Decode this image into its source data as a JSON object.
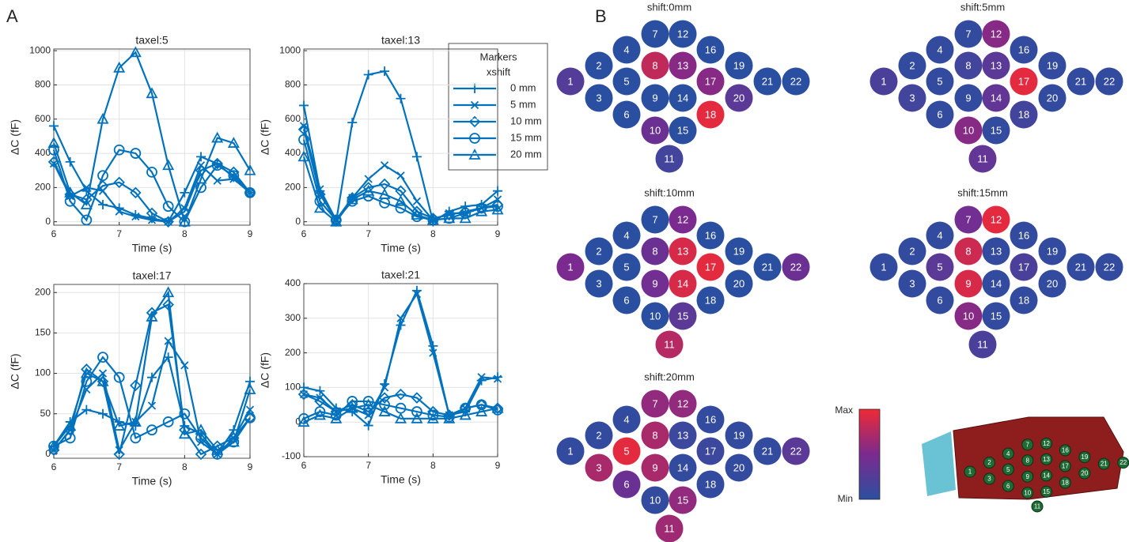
{
  "panel_labels": [
    "A",
    "B"
  ],
  "chart_data": [
    {
      "type": "line",
      "title": "taxel:5",
      "xlabel": "Time (s)",
      "ylabel": "ΔC (fF)",
      "x": [
        6,
        6.25,
        6.5,
        6.75,
        7,
        7.25,
        7.5,
        7.75,
        8,
        8.25,
        8.5,
        8.75,
        9
      ],
      "xlim": [
        6,
        9
      ],
      "xticks": [
        6,
        7,
        8,
        9
      ],
      "ylim": [
        -20,
        1010
      ],
      "yticks": [
        0,
        200,
        400,
        600,
        800,
        1000
      ],
      "grid": true,
      "legend_title": "Markers",
      "legend_subtitle": "xshift",
      "series": [
        {
          "name": "0 mm",
          "color": "#0072bd",
          "marker": "plus",
          "values": [
            560,
            350,
            180,
            100,
            80,
            40,
            20,
            0,
            170,
            380,
            340,
            260,
            170
          ]
        },
        {
          "name": "5 mm",
          "color": "#0072bd",
          "marker": "x",
          "values": [
            340,
            150,
            200,
            180,
            60,
            30,
            10,
            0,
            80,
            330,
            240,
            250,
            170
          ]
        },
        {
          "name": "10 mm",
          "color": "#0072bd",
          "marker": "diamond",
          "values": [
            350,
            160,
            130,
            210,
            230,
            170,
            50,
            0,
            60,
            300,
            340,
            290,
            170
          ]
        },
        {
          "name": "15 mm",
          "color": "#0072bd",
          "marker": "circle",
          "values": [
            420,
            120,
            10,
            270,
            420,
            400,
            290,
            90,
            0,
            200,
            330,
            270,
            170
          ]
        },
        {
          "name": "20 mm",
          "color": "#0072bd",
          "marker": "triangle",
          "values": [
            460,
            170,
            100,
            600,
            900,
            990,
            750,
            330,
            0,
            250,
            490,
            460,
            300
          ]
        }
      ]
    },
    {
      "type": "line",
      "title": "taxel:13",
      "xlabel": "Time (s)",
      "ylabel": "ΔC (fF)",
      "x": [
        6,
        6.25,
        6.5,
        6.75,
        7,
        7.25,
        7.5,
        7.75,
        8,
        8.25,
        8.5,
        8.75,
        9
      ],
      "xlim": [
        6,
        9
      ],
      "xticks": [
        6,
        7,
        8,
        9
      ],
      "ylim": [
        -20,
        1010
      ],
      "yticks": [
        0,
        200,
        400,
        600,
        800,
        1000
      ],
      "grid": true,
      "series": [
        {
          "name": "0 mm",
          "color": "#0072bd",
          "marker": "plus",
          "values": [
            680,
            180,
            0,
            580,
            860,
            880,
            720,
            380,
            0,
            60,
            90,
            100,
            180
          ]
        },
        {
          "name": "5 mm",
          "color": "#0072bd",
          "marker": "x",
          "values": [
            560,
            190,
            10,
            140,
            250,
            330,
            270,
            120,
            10,
            50,
            50,
            80,
            130
          ]
        },
        {
          "name": "10 mm",
          "color": "#0072bd",
          "marker": "diamond",
          "values": [
            540,
            160,
            10,
            140,
            200,
            220,
            180,
            60,
            20,
            40,
            60,
            80,
            100
          ]
        },
        {
          "name": "15 mm",
          "color": "#0072bd",
          "marker": "circle",
          "values": [
            480,
            120,
            10,
            120,
            150,
            110,
            80,
            30,
            10,
            20,
            50,
            80,
            90
          ]
        },
        {
          "name": "20 mm",
          "color": "#0072bd",
          "marker": "triangle",
          "values": [
            380,
            80,
            0,
            130,
            180,
            160,
            120,
            40,
            10,
            20,
            20,
            60,
            70
          ]
        }
      ]
    },
    {
      "type": "line",
      "title": "taxel:17",
      "xlabel": "Time (s)",
      "ylabel": "ΔC (fF)",
      "x": [
        6,
        6.25,
        6.5,
        6.75,
        7,
        7.25,
        7.5,
        7.75,
        8,
        8.25,
        8.5,
        8.75,
        9
      ],
      "xlim": [
        6,
        9
      ],
      "xticks": [
        6,
        7,
        8,
        9
      ],
      "ylim": [
        -5,
        210
      ],
      "yticks": [
        0,
        50,
        100,
        150,
        200
      ],
      "grid": true,
      "series": [
        {
          "name": "0 mm",
          "color": "#0072bd",
          "marker": "plus",
          "values": [
            10,
            40,
            55,
            50,
            40,
            35,
            95,
            120,
            35,
            25,
            0,
            30,
            90
          ]
        },
        {
          "name": "5 mm",
          "color": "#0072bd",
          "marker": "x",
          "values": [
            5,
            30,
            80,
            100,
            5,
            40,
            60,
            140,
            110,
            15,
            0,
            20,
            55
          ]
        },
        {
          "name": "10 mm",
          "color": "#0072bd",
          "marker": "diamond",
          "values": [
            5,
            30,
            105,
            90,
            0,
            85,
            175,
            185,
            30,
            0,
            10,
            20,
            45
          ]
        },
        {
          "name": "15 mm",
          "color": "#0072bd",
          "marker": "circle",
          "values": [
            10,
            20,
            90,
            120,
            95,
            20,
            30,
            40,
            50,
            20,
            0,
            15,
            45
          ]
        },
        {
          "name": "20 mm",
          "color": "#0072bd",
          "marker": "triangle",
          "values": [
            10,
            35,
            100,
            90,
            35,
            40,
            170,
            200,
            25,
            30,
            5,
            15,
            80
          ]
        }
      ]
    },
    {
      "type": "line",
      "title": "taxel:21",
      "xlabel": "Time (s)",
      "ylabel": "ΔC (fF)",
      "x": [
        6,
        6.25,
        6.5,
        6.75,
        7,
        7.25,
        7.5,
        7.75,
        8,
        8.25,
        8.5,
        8.75,
        9
      ],
      "xlim": [
        6,
        9
      ],
      "xticks": [
        6,
        7,
        8,
        9
      ],
      "ylim": [
        -100,
        400
      ],
      "yticks": [
        -100,
        0,
        100,
        200,
        300,
        400
      ],
      "grid": true,
      "series": [
        {
          "name": "0 mm",
          "color": "#0072bd",
          "marker": "plus",
          "values": [
            100,
            90,
            40,
            30,
            -10,
            110,
            280,
            380,
            220,
            20,
            30,
            120,
            130
          ]
        },
        {
          "name": "5 mm",
          "color": "#0072bd",
          "marker": "x",
          "values": [
            80,
            70,
            30,
            40,
            20,
            100,
            300,
            370,
            200,
            20,
            40,
            130,
            125
          ]
        },
        {
          "name": "10 mm",
          "color": "#0072bd",
          "marker": "diamond",
          "values": [
            80,
            60,
            30,
            50,
            30,
            70,
            80,
            70,
            30,
            20,
            40,
            50,
            40
          ]
        },
        {
          "name": "15 mm",
          "color": "#0072bd",
          "marker": "circle",
          "values": [
            10,
            30,
            20,
            60,
            60,
            50,
            40,
            30,
            20,
            15,
            40,
            50,
            35
          ]
        },
        {
          "name": "20 mm",
          "color": "#0072bd",
          "marker": "triangle",
          "values": [
            0,
            20,
            10,
            40,
            50,
            30,
            10,
            10,
            10,
            10,
            20,
            30,
            40
          ]
        }
      ]
    }
  ],
  "taxel_maps": {
    "taxels": [
      "1",
      "2",
      "3",
      "4",
      "5",
      "6",
      "7",
      "8",
      "9",
      "10",
      "11",
      "12",
      "13",
      "14",
      "15",
      "16",
      "17",
      "18",
      "19",
      "20",
      "21",
      "22"
    ],
    "colorbar": {
      "max_label": "Max",
      "min_label": "Min",
      "colors": [
        "#2b4fa0",
        "#7b2a8f",
        "#ee2a36"
      ]
    },
    "maps": [
      {
        "title": "shift:0mm",
        "values": [
          0.25,
          0,
          0,
          0,
          0,
          0,
          0,
          0.8,
          0,
          0.4,
          0.15,
          0,
          0.55,
          0,
          0,
          0,
          0.55,
          0.95,
          0,
          0.3,
          0,
          0
        ]
      },
      {
        "title": "shift:5mm",
        "values": [
          0.2,
          0.05,
          0.15,
          0.05,
          0.05,
          0.05,
          0.05,
          0.15,
          0.05,
          0.55,
          0.35,
          0.55,
          0.3,
          0.35,
          0.05,
          0.05,
          0.95,
          0.15,
          0.05,
          0.05,
          0.05,
          0.05
        ]
      },
      {
        "title": "shift:10mm",
        "values": [
          0.5,
          0,
          0,
          0,
          0,
          0,
          0,
          0.4,
          0.45,
          0,
          0.75,
          0.5,
          0.9,
          0.9,
          0.3,
          0,
          0.95,
          0,
          0,
          0,
          0,
          0.4
        ]
      },
      {
        "title": "shift:15mm",
        "values": [
          0.05,
          0.05,
          0.05,
          0.05,
          0.3,
          0.05,
          0.45,
          0.85,
          0.9,
          0.55,
          0.2,
          0.95,
          0.05,
          0.05,
          0.05,
          0.05,
          0.2,
          0.05,
          0.05,
          0.05,
          0.05,
          0.05
        ]
      },
      {
        "title": "shift:20mm",
        "values": [
          0.05,
          0.05,
          0.7,
          0.05,
          0.95,
          0.4,
          0.6,
          0.7,
          0.7,
          0.05,
          0.65,
          0.6,
          0.1,
          0.05,
          0.6,
          0.05,
          0.1,
          0.05,
          0.05,
          0.05,
          0.05,
          0.3
        ]
      }
    ]
  }
}
